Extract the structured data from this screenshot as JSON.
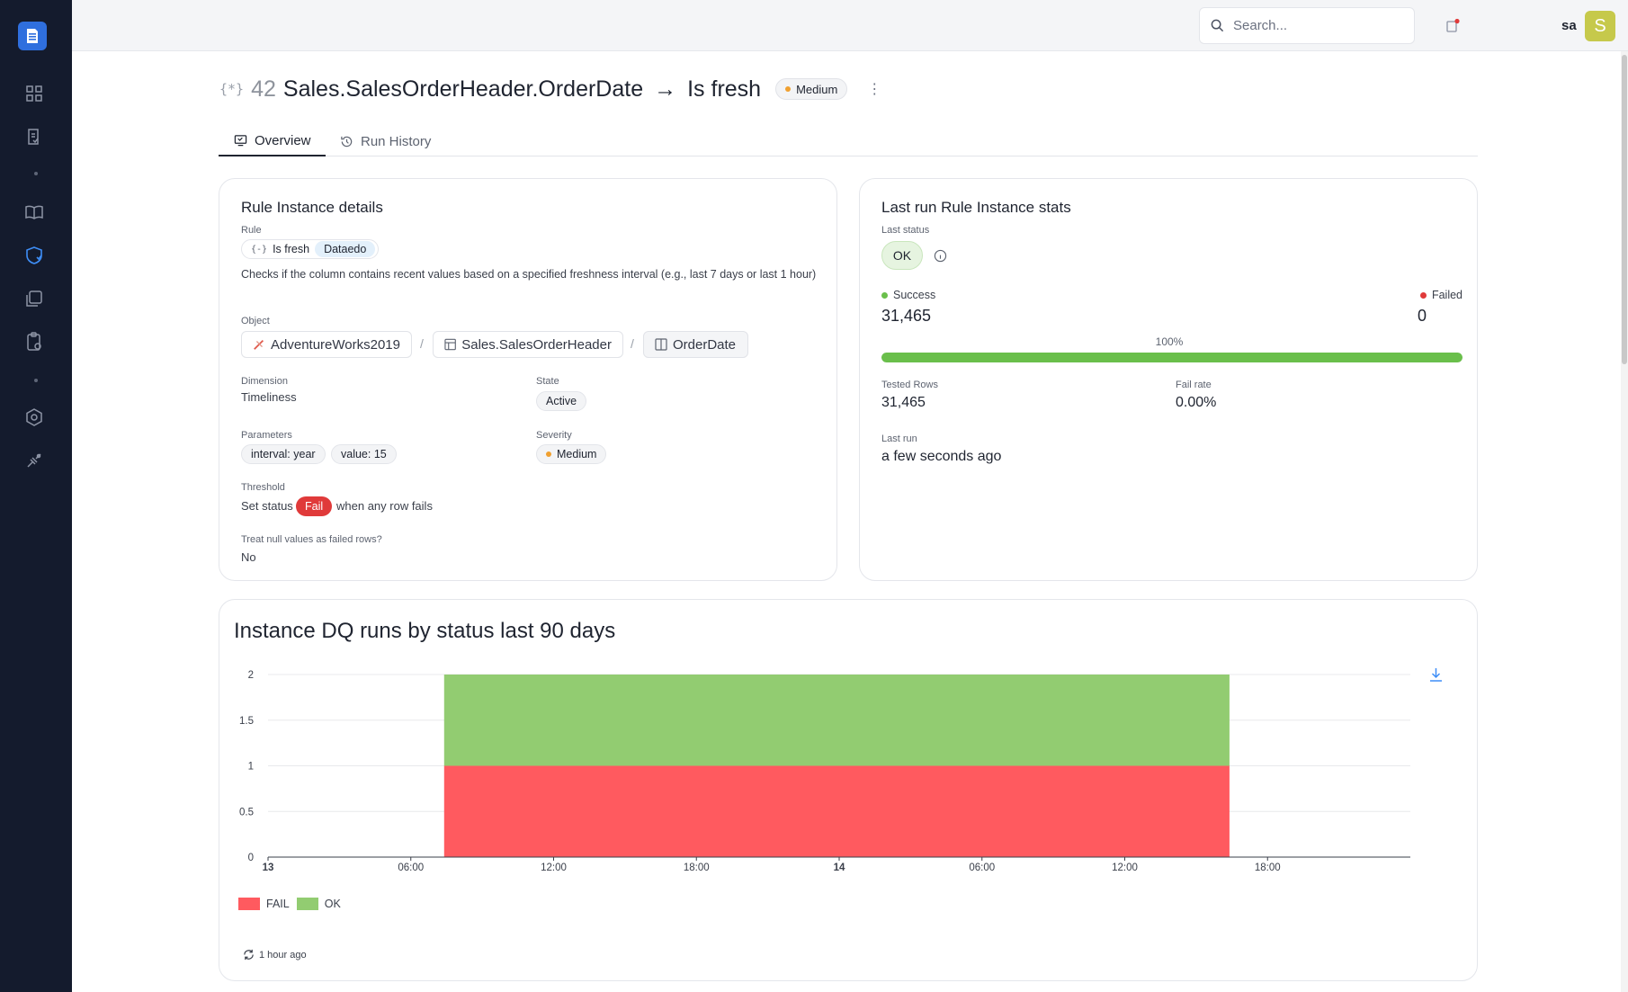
{
  "topbar": {
    "search_placeholder": "Search...",
    "user_name": "sa",
    "avatar_initial": "S"
  },
  "header": {
    "instance_id": "42",
    "object_name": "Sales.SalesOrderHeader.OrderDate",
    "arrow": "→",
    "rule_name": "Is fresh",
    "severity": "Medium",
    "severity_color": "#f0a030"
  },
  "tabs": [
    {
      "label": "Overview",
      "active": true
    },
    {
      "label": "Run History",
      "active": false
    }
  ],
  "details": {
    "title": "Rule Instance details",
    "rule_label": "Rule",
    "rule_name": "Is fresh",
    "rule_source": "Dataedo",
    "rule_description": "Checks if the column contains recent values based on a specified freshness interval (e.g., last 7 days or last 1 hour)",
    "object_label": "Object",
    "object_path": [
      "AdventureWorks2019",
      "Sales.SalesOrderHeader",
      "OrderDate"
    ],
    "separator": "/",
    "dimension_label": "Dimension",
    "dimension": "Timeliness",
    "state_label": "State",
    "state": "Active",
    "parameters_label": "Parameters",
    "parameters": [
      "interval: year",
      "value: 15"
    ],
    "severity_label": "Severity",
    "severity": "Medium",
    "threshold_label": "Threshold",
    "threshold_prefix": "Set status",
    "threshold_status": "Fail",
    "threshold_suffix": "when any row fails",
    "null_label": "Treat null values as failed rows?",
    "null_value": "No"
  },
  "stats": {
    "title": "Last run Rule Instance stats",
    "last_status_label": "Last status",
    "last_status": "OK",
    "success_label": "Success",
    "success_value": "31,465",
    "failed_label": "Failed",
    "failed_value": "0",
    "success_pct": 100,
    "success_pct_label": "100%",
    "tested_rows_label": "Tested Rows",
    "tested_rows": "31,465",
    "fail_rate_label": "Fail rate",
    "fail_rate": "0.00%",
    "last_run_label": "Last run",
    "last_run": "a few seconds ago",
    "success_color": "#6abf4b",
    "fail_color": "#e03a3a"
  },
  "chart": {
    "title": "Instance DQ runs by status last 90 days",
    "refresh_label": "1 hour ago"
  },
  "chart_data": {
    "type": "area",
    "title": "Instance DQ runs by status last 90 days",
    "x_ticks": [
      {
        "label": "13",
        "hour": 0,
        "bold": true
      },
      {
        "label": "06:00",
        "hour": 6,
        "bold": false
      },
      {
        "label": "12:00",
        "hour": 12,
        "bold": false
      },
      {
        "label": "18:00",
        "hour": 18,
        "bold": false
      },
      {
        "label": "14",
        "hour": 24,
        "bold": true
      },
      {
        "label": "06:00",
        "hour": 30,
        "bold": false
      },
      {
        "label": "12:00",
        "hour": 36,
        "bold": false
      },
      {
        "label": "18:00",
        "hour": 42,
        "bold": false
      }
    ],
    "x_range_hours": [
      0,
      48
    ],
    "y_ticks": [
      "0",
      "0.5",
      "1",
      "1.5",
      "2"
    ],
    "ylim": [
      0,
      2
    ],
    "stacked": true,
    "grid": true,
    "series": [
      {
        "name": "FAIL",
        "color": "#ff5a5f",
        "x_start_hour": 7.4,
        "x_end_hour": 40.4,
        "value": 1
      },
      {
        "name": "OK",
        "color": "#92cc71",
        "x_start_hour": 7.4,
        "x_end_hour": 40.4,
        "value": 1
      }
    ],
    "legend_position": "bottom-left"
  }
}
